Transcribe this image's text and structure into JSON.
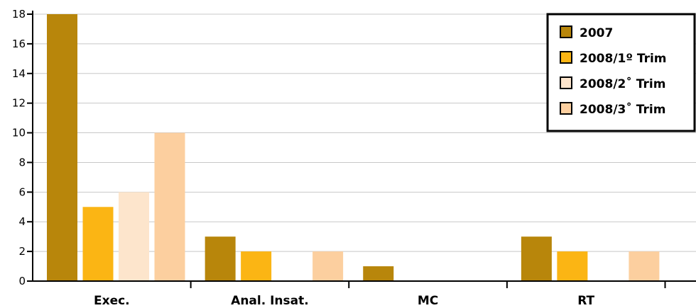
{
  "chart_data": {
    "type": "bar",
    "categories": [
      "Exec.",
      "Anal. Insat.",
      "MC",
      "RT"
    ],
    "series": [
      {
        "name": "2007",
        "values": [
          18,
          3,
          1,
          3
        ],
        "color": "#B8860B"
      },
      {
        "name": "2008/1º Trim",
        "values": [
          5,
          2,
          0,
          2
        ],
        "color": "#FBB514"
      },
      {
        "name": "2008/2˚ Trim",
        "values": [
          6,
          0,
          0,
          0
        ],
        "color": "#FDE5CC"
      },
      {
        "name": "2008/3˚ Trim",
        "values": [
          10,
          2,
          0,
          2
        ],
        "color": "#FCCF9F"
      }
    ],
    "ylim": [
      0,
      18
    ],
    "yticks": [
      0,
      2,
      4,
      6,
      8,
      10,
      12,
      14,
      16,
      18
    ],
    "grid": true,
    "legend_position": "top-right",
    "title": "",
    "xlabel": "",
    "ylabel": ""
  }
}
